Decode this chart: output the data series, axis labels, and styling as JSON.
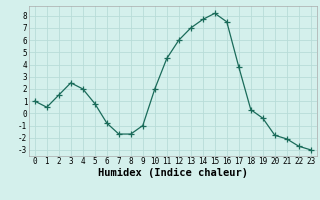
{
  "x": [
    0,
    1,
    2,
    3,
    4,
    5,
    6,
    7,
    8,
    9,
    10,
    11,
    12,
    13,
    14,
    15,
    16,
    17,
    18,
    19,
    20,
    21,
    22,
    23
  ],
  "y": [
    1,
    0.5,
    1.5,
    2.5,
    2,
    0.8,
    -0.8,
    -1.7,
    -1.7,
    -1,
    2,
    4.5,
    6,
    7,
    7.7,
    8.2,
    7.5,
    3.8,
    0.3,
    -0.4,
    -1.8,
    -2.1,
    -2.7,
    -3
  ],
  "line_color": "#1a6b5a",
  "marker": "+",
  "marker_size": 4,
  "xlabel": "Humidex (Indice chaleur)",
  "xlim": [
    -0.5,
    23.5
  ],
  "ylim": [
    -3.5,
    8.8
  ],
  "yticks": [
    -3,
    -2,
    -1,
    0,
    1,
    2,
    3,
    4,
    5,
    6,
    7,
    8
  ],
  "xticks": [
    0,
    1,
    2,
    3,
    4,
    5,
    6,
    7,
    8,
    9,
    10,
    11,
    12,
    13,
    14,
    15,
    16,
    17,
    18,
    19,
    20,
    21,
    22,
    23
  ],
  "background_color": "#d4f0ec",
  "grid_color": "#b8dcd8",
  "tick_fontsize": 5.5,
  "xlabel_fontsize": 7.5,
  "title": ""
}
